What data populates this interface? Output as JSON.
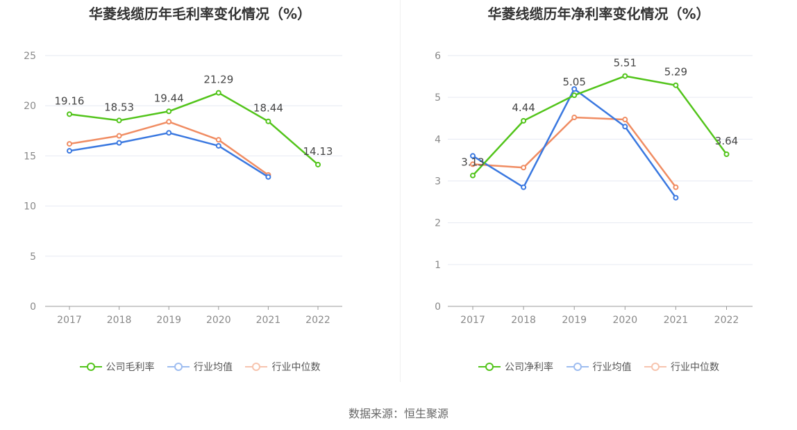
{
  "chart_data": [
    {
      "type": "line",
      "title": "华菱线缆历年毛利率变化情况（%）",
      "categories": [
        "2017",
        "2018",
        "2019",
        "2020",
        "2021",
        "2022"
      ],
      "ylim": [
        0,
        25
      ],
      "yticks": [
        0,
        5,
        10,
        15,
        20,
        25
      ],
      "grid": true,
      "legend_position": "bottom",
      "series": [
        {
          "name": "公司毛利率",
          "color": "#52c41a",
          "values": [
            19.16,
            18.53,
            19.44,
            21.29,
            18.44,
            14.13
          ],
          "labels": [
            "19.16",
            "18.53",
            "19.44",
            "21.29",
            "18.44",
            "14.13"
          ]
        },
        {
          "name": "行业均值",
          "color": "#3a78e0",
          "values": [
            15.5,
            16.3,
            17.3,
            16.0,
            12.9,
            null
          ]
        },
        {
          "name": "行业中位数",
          "color": "#f08c62",
          "values": [
            16.2,
            17.0,
            18.4,
            16.6,
            13.1,
            null
          ]
        }
      ]
    },
    {
      "type": "line",
      "title": "华菱线缆历年净利率变化情况（%）",
      "categories": [
        "2017",
        "2018",
        "2019",
        "2020",
        "2021",
        "2022"
      ],
      "ylim": [
        0,
        6
      ],
      "yticks": [
        0,
        1,
        2,
        3,
        4,
        5,
        6
      ],
      "grid": true,
      "legend_position": "bottom",
      "series": [
        {
          "name": "公司净利率",
          "color": "#52c41a",
          "values": [
            3.13,
            4.44,
            5.05,
            5.51,
            5.29,
            3.64
          ],
          "labels": [
            "3.13",
            "4.44",
            "5.05",
            "5.51",
            "5.29",
            "3.64"
          ]
        },
        {
          "name": "行业均值",
          "color": "#3a78e0",
          "values": [
            3.6,
            2.85,
            5.2,
            4.3,
            2.6,
            null
          ]
        },
        {
          "name": "行业中位数",
          "color": "#f08c62",
          "values": [
            3.4,
            3.32,
            4.52,
            4.47,
            2.85,
            null
          ]
        }
      ]
    }
  ],
  "legend_colors": {
    "company_faded": "#52c41a",
    "avg_faded": "#9dbcf0",
    "median_faded": "#f7c4ae"
  },
  "footer": {
    "source_text": "数据来源：恒生聚源"
  }
}
